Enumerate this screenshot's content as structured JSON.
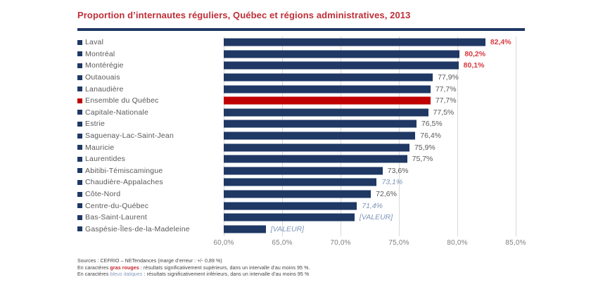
{
  "title": "Proportion d’internautes réguliers, Québec et régions administratives, 2013",
  "colors": {
    "title_red": "#be2f38",
    "rule_navy": "#1f3864",
    "bar_navy": "#1f3864",
    "bar_red": "#c00000",
    "value_red": "#d93a40",
    "value_blue_italic": "#7e96b8",
    "text_gray": "#595959",
    "gridline_gray": "#d9d9d9"
  },
  "chart_data": {
    "type": "bar",
    "orientation": "horizontal",
    "title": "Proportion d’internautes réguliers, Québec et régions administratives, 2013",
    "xlim": [
      60,
      85
    ],
    "grid": true,
    "x_ticks": [
      {
        "value": 60,
        "label": "60,0%"
      },
      {
        "value": 65,
        "label": "65,0%"
      },
      {
        "value": 70,
        "label": "70,0%"
      },
      {
        "value": 75,
        "label": "75,0%"
      },
      {
        "value": 80,
        "label": "80,0%"
      },
      {
        "value": 85,
        "label": "85,0%"
      }
    ],
    "categories": [
      "Laval",
      "Montréal",
      "Montérégie",
      "Outaouais",
      "Lanaudière",
      "Ensemble du Québec",
      "Capitale-Nationale",
      "Estrie",
      "Saguenay-Lac-Saint-Jean",
      "Mauricie",
      "Laurentides",
      "Abitibi-Témiscamingue",
      "Chaudière-Appalaches",
      "Côte-Nord",
      "Centre-du-Québec",
      "Bas-Saint-Laurent",
      "Gaspésie-Îles-de-la-Madeleine"
    ],
    "values": [
      82.4,
      80.2,
      80.1,
      77.9,
      77.7,
      77.7,
      77.5,
      76.5,
      76.4,
      75.9,
      75.7,
      73.6,
      73.1,
      72.6,
      71.4,
      71.2,
      63.6
    ],
    "value_labels": [
      "82,4%",
      "80,2%",
      "80,1%",
      "77,9%",
      "77,7%",
      "77,7%",
      "77,5%",
      "76,5%",
      "76,4%",
      "75,9%",
      "75,7%",
      "73,6%",
      "73,1%",
      "72,6%",
      "71,4%",
      "[VALEUR]",
      "[VALEUR]"
    ],
    "value_styles": [
      "red",
      "red",
      "red",
      "normal",
      "normal",
      "normal",
      "normal",
      "normal",
      "normal",
      "normal",
      "normal",
      "normal",
      "blue",
      "normal",
      "blue",
      "blue",
      "blue"
    ],
    "bar_colors": [
      "#1f3864",
      "#1f3864",
      "#1f3864",
      "#1f3864",
      "#1f3864",
      "#c00000",
      "#1f3864",
      "#1f3864",
      "#1f3864",
      "#1f3864",
      "#1f3864",
      "#1f3864",
      "#1f3864",
      "#1f3864",
      "#1f3864",
      "#1f3864",
      "#1f3864"
    ]
  },
  "footnotes": {
    "line1": "Sources : CEFRIO – NETendances (marge d’erreur : +/- 0,89 %)",
    "line2_prefix": "En caractères ",
    "line2_highlight": "gras rouges",
    "line2_suffix": " : résultats significativement supérieurs, dans un intervalle d’au moins 95 %.",
    "line3_prefix": "En caractères ",
    "line3_highlight": "bleus italiques",
    "line3_suffix": " : résultats significativement inférieurs, dans un intervalle d’au moins 95 %"
  }
}
